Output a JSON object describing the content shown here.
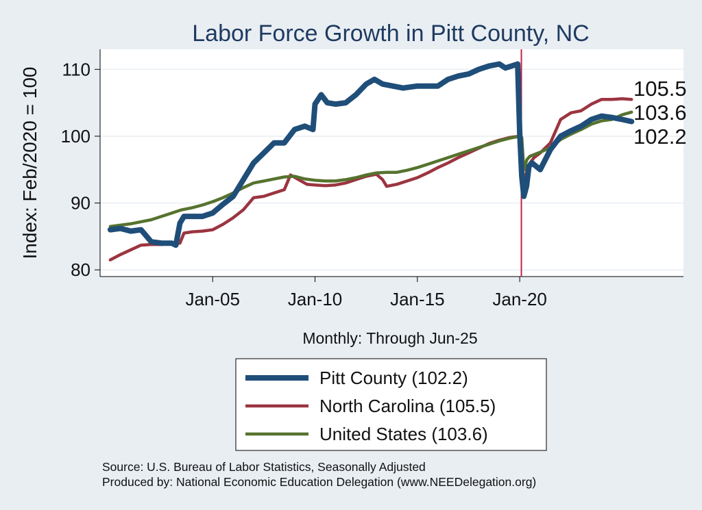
{
  "chart_data": {
    "type": "line",
    "title": "Labor Force Growth in Pitt  County, NC",
    "ylabel": "Index: Feb/2020 = 100",
    "xlabel": "Monthly: Through Jun-25",
    "ylim": [
      79,
      113
    ],
    "xlim": [
      1999.5,
      2028.0
    ],
    "yticks": [
      80,
      90,
      100,
      110
    ],
    "xticks": [
      {
        "x": 2005.0,
        "label": "Jan-05"
      },
      {
        "x": 2010.0,
        "label": "Jan-10"
      },
      {
        "x": 2015.0,
        "label": "Jan-15"
      },
      {
        "x": 2020.0,
        "label": "Jan-20"
      }
    ],
    "vline": {
      "x": 2020.08,
      "color": "#c0234a"
    },
    "grid": true,
    "series": [
      {
        "name": "Pitt  County (102.2)",
        "color": "#1f4e79",
        "end_label": "102.2",
        "x": [
          2000.0,
          2000.5,
          2001.0,
          2001.5,
          2002.0,
          2002.5,
          2003.0,
          2003.2,
          2003.4,
          2003.6,
          2004.0,
          2004.5,
          2005.0,
          2005.5,
          2006.0,
          2006.5,
          2007.0,
          2007.5,
          2008.0,
          2008.5,
          2009.0,
          2009.5,
          2009.9,
          2010.0,
          2010.3,
          2010.6,
          2011.0,
          2011.5,
          2012.0,
          2012.5,
          2012.9,
          2013.3,
          2013.8,
          2014.3,
          2015.0,
          2015.5,
          2016.0,
          2016.5,
          2017.0,
          2017.5,
          2018.0,
          2018.5,
          2019.0,
          2019.3,
          2019.6,
          2019.9,
          2020.0,
          2020.1,
          2020.2,
          2020.33,
          2020.45,
          2020.6,
          2021.0,
          2021.5,
          2022.0,
          2022.5,
          2023.0,
          2023.5,
          2024.0,
          2024.5,
          2025.0,
          2025.46
        ],
        "values": [
          86.0,
          86.2,
          85.8,
          86.0,
          84.2,
          84.0,
          84.0,
          83.7,
          87.0,
          88.0,
          88.0,
          88.0,
          88.5,
          89.8,
          91.0,
          93.5,
          96.0,
          97.5,
          99.0,
          99.0,
          101.0,
          101.5,
          101.0,
          104.8,
          106.2,
          105.0,
          104.8,
          105.0,
          106.2,
          107.8,
          108.5,
          107.8,
          107.5,
          107.2,
          107.5,
          107.5,
          107.5,
          108.5,
          109.0,
          109.3,
          110.0,
          110.5,
          110.8,
          110.2,
          110.5,
          110.8,
          100.5,
          94.0,
          91.0,
          92.5,
          95.5,
          96.0,
          95.0,
          98.0,
          100.0,
          100.8,
          101.5,
          102.5,
          103.0,
          102.8,
          102.5,
          102.2
        ]
      },
      {
        "name": "North Carolina (105.5)",
        "color": "#9b3540",
        "end_label": "105.5",
        "x": [
          2000.0,
          2000.5,
          2001.0,
          2001.5,
          2002.0,
          2002.5,
          2003.0,
          2003.4,
          2003.6,
          2004.0,
          2004.5,
          2005.0,
          2005.5,
          2006.0,
          2006.5,
          2007.0,
          2007.5,
          2008.0,
          2008.5,
          2008.8,
          2009.2,
          2009.6,
          2010.0,
          2010.5,
          2011.0,
          2011.5,
          2012.0,
          2012.5,
          2013.0,
          2013.3,
          2013.5,
          2014.0,
          2014.5,
          2015.0,
          2015.5,
          2016.0,
          2016.5,
          2017.0,
          2017.5,
          2018.0,
          2018.5,
          2019.0,
          2019.5,
          2020.0,
          2020.1,
          2020.2,
          2020.35,
          2020.5,
          2020.7,
          2021.0,
          2021.5,
          2022.0,
          2022.5,
          2023.0,
          2023.5,
          2024.0,
          2024.5,
          2025.0,
          2025.46
        ],
        "values": [
          81.5,
          82.3,
          83.0,
          83.7,
          83.8,
          83.8,
          84.0,
          84.0,
          85.5,
          85.7,
          85.8,
          86.0,
          86.8,
          87.8,
          89.0,
          90.8,
          91.0,
          91.5,
          92.0,
          94.2,
          93.5,
          92.8,
          92.7,
          92.6,
          92.7,
          93.0,
          93.5,
          94.0,
          94.3,
          93.5,
          92.5,
          92.8,
          93.3,
          93.8,
          94.5,
          95.3,
          96.0,
          96.8,
          97.5,
          98.2,
          98.9,
          99.4,
          99.8,
          100.0,
          97.0,
          92.5,
          95.0,
          96.0,
          96.8,
          97.5,
          99.0,
          102.5,
          103.5,
          103.8,
          104.8,
          105.5,
          105.5,
          105.6,
          105.5
        ]
      },
      {
        "name": "United States (103.6)",
        "color": "#56732e",
        "end_label": "103.6",
        "x": [
          2000.0,
          2000.5,
          2001.0,
          2001.5,
          2002.0,
          2002.5,
          2003.0,
          2003.5,
          2004.0,
          2004.5,
          2005.0,
          2005.5,
          2006.0,
          2006.5,
          2007.0,
          2007.5,
          2008.0,
          2008.5,
          2009.0,
          2009.5,
          2010.0,
          2010.5,
          2011.0,
          2011.5,
          2012.0,
          2012.5,
          2013.0,
          2013.5,
          2014.0,
          2014.5,
          2015.0,
          2015.5,
          2016.0,
          2016.5,
          2017.0,
          2017.5,
          2018.0,
          2018.5,
          2019.0,
          2019.5,
          2020.0,
          2020.1,
          2020.2,
          2020.35,
          2020.5,
          2021.0,
          2021.5,
          2022.0,
          2022.5,
          2023.0,
          2023.5,
          2024.0,
          2024.5,
          2025.0,
          2025.46
        ],
        "values": [
          86.5,
          86.7,
          86.9,
          87.2,
          87.5,
          88.0,
          88.5,
          89.0,
          89.3,
          89.7,
          90.2,
          90.8,
          91.5,
          92.3,
          93.0,
          93.3,
          93.6,
          93.9,
          94.0,
          93.6,
          93.4,
          93.3,
          93.3,
          93.5,
          93.8,
          94.2,
          94.5,
          94.6,
          94.6,
          94.9,
          95.3,
          95.8,
          96.3,
          96.8,
          97.3,
          97.8,
          98.3,
          98.8,
          99.3,
          99.7,
          100.0,
          99.8,
          95.0,
          96.5,
          97.0,
          97.6,
          98.3,
          99.5,
          100.3,
          101.0,
          101.8,
          102.3,
          102.5,
          103.2,
          103.6
        ]
      }
    ],
    "legend": {
      "position": "bottom"
    }
  },
  "source": {
    "line1": "Source: U.S. Bureau of Labor Statistics, Seasonally Adjusted",
    "line2": "Produced by: National Economic Education Delegation (www.NEEDelegation.org)"
  }
}
